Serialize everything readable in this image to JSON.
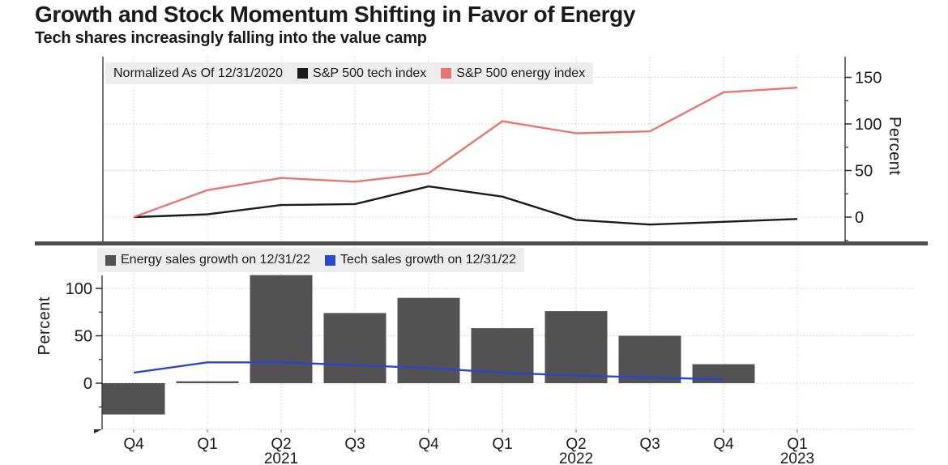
{
  "header": {
    "title": "Growth and Stock Momentum Shifting in Favor of Energy",
    "subtitle": "Tech shares increasingly falling into the value camp"
  },
  "colors": {
    "background": "#ffffff",
    "legend_bg": "#ededed",
    "gridline": "#c9c9c9",
    "axis": "#2b2b2b",
    "separator": "#4d4d4d",
    "tick_text": "#1a1a1a"
  },
  "chart_data": [
    {
      "type": "line",
      "panel": "top",
      "legend_note": "Normalized As Of 12/31/2020",
      "legend_position": "top-left",
      "y_axis_side": "right",
      "ylabel": "Percent",
      "yticks": [
        0,
        50,
        100,
        150
      ],
      "minor_yticks": [
        -25,
        25,
        75,
        125
      ],
      "ylim": [
        -28,
        172
      ],
      "grid": true,
      "categories": [
        "Q4 2020",
        "Q1 2021",
        "Q2 2021",
        "Q3 2021",
        "Q4 2021",
        "Q1 2022",
        "Q2 2022",
        "Q3 2022",
        "Q4 2022",
        "Q1 2023"
      ],
      "series": [
        {
          "name": "S&P 500 tech index",
          "color": "#1c1c1c",
          "values": [
            0,
            3,
            13,
            14,
            33,
            22,
            -3,
            -8,
            -5,
            -2
          ]
        },
        {
          "name": "S&P 500 energy index",
          "color": "#e8766e",
          "values": [
            0,
            29,
            42,
            38,
            47,
            103,
            90,
            92,
            134,
            139
          ]
        }
      ]
    },
    {
      "type": "bar+line",
      "panel": "bottom",
      "legend_position": "top-left",
      "y_axis_side": "left",
      "ylabel": "Percent",
      "yticks": [
        0,
        50,
        100
      ],
      "minor_yticks": [
        -25,
        25,
        75
      ],
      "ylim": [
        -49,
        114
      ],
      "grid": true,
      "categories": [
        "Q4 2020",
        "Q1 2021",
        "Q2 2021",
        "Q3 2021",
        "Q4 2021",
        "Q1 2022",
        "Q2 2022",
        "Q3 2022",
        "Q4 2022",
        "Q1 2023"
      ],
      "x_tick_labels": [
        "Q4",
        "Q1",
        "Q2",
        "Q3",
        "Q4",
        "Q1",
        "Q2",
        "Q3",
        "Q4",
        "Q1"
      ],
      "year_labels": [
        {
          "index": 2,
          "label": "2021"
        },
        {
          "index": 6,
          "label": "2022"
        },
        {
          "index": 9,
          "label": "2023"
        }
      ],
      "series": [
        {
          "name": "Energy sales growth on 12/31/22",
          "render": "bar",
          "color": "#525153",
          "values": [
            -33,
            2,
            114,
            74,
            90,
            58,
            76,
            50,
            20,
            null
          ]
        },
        {
          "name": "Tech sales growth on 12/31/22",
          "render": "line",
          "color": "#2a48cf",
          "values": [
            11,
            22,
            22,
            19,
            16,
            11,
            8,
            6,
            4,
            null
          ]
        }
      ]
    }
  ]
}
